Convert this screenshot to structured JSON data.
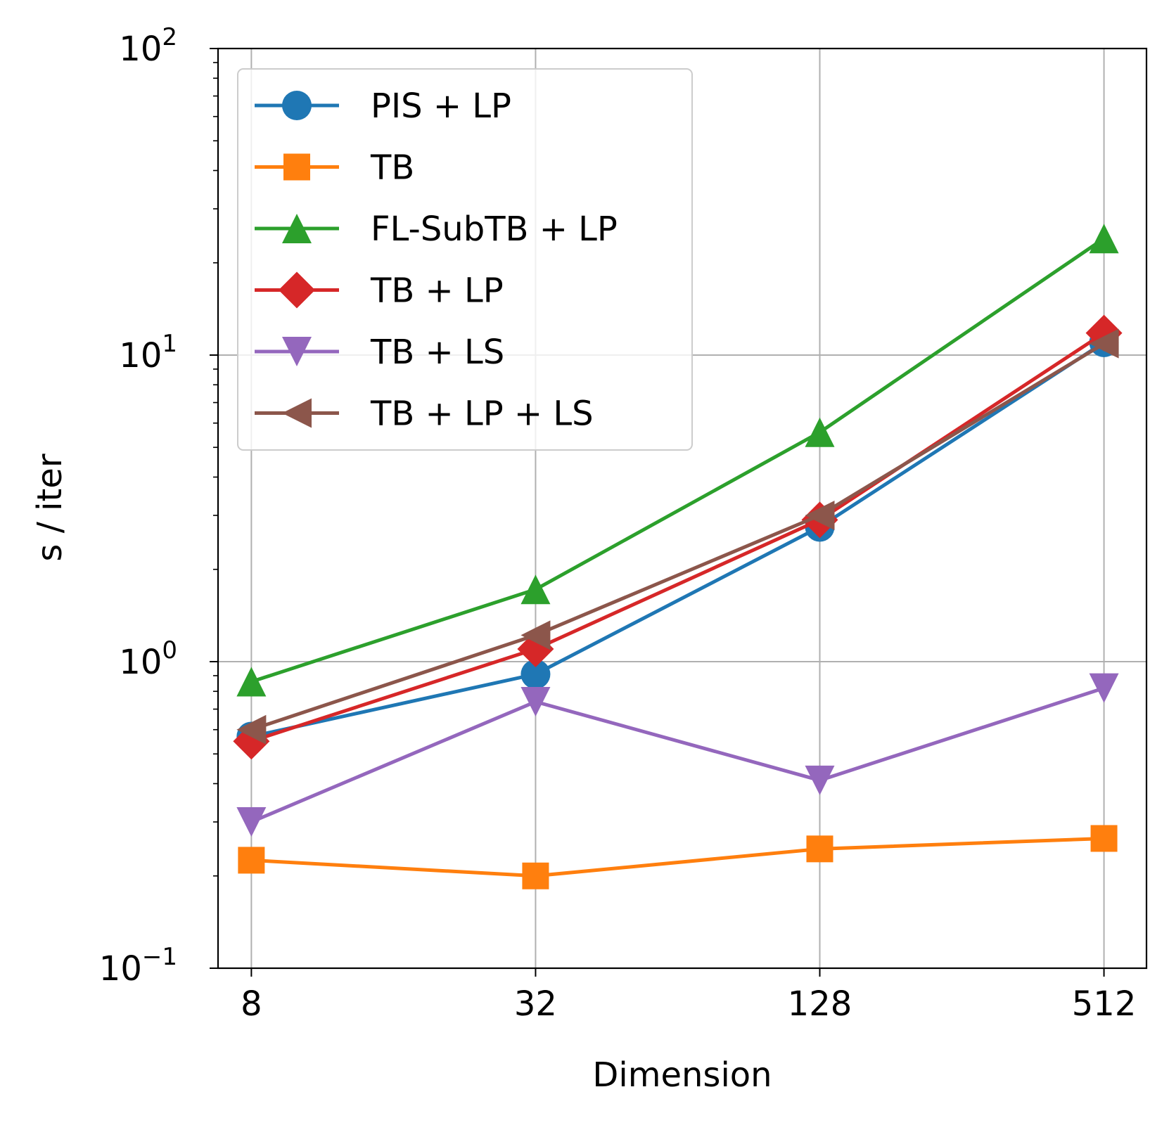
{
  "chart_data": {
    "type": "line",
    "title": "",
    "xlabel": "Dimension",
    "ylabel": "s / iter",
    "x_scale": "log2",
    "y_scale": "log10",
    "x": [
      8,
      32,
      128,
      512
    ],
    "x_tick_labels": [
      "8",
      "32",
      "128",
      "512"
    ],
    "xlim": [
      6.8,
      630
    ],
    "ylim": [
      0.1,
      100
    ],
    "y_ticks": [
      {
        "base": "10",
        "exp": "−1",
        "value": 0.1
      },
      {
        "base": "10",
        "exp": "0",
        "value": 1
      },
      {
        "base": "10",
        "exp": "1",
        "value": 10
      },
      {
        "base": "10",
        "exp": "2",
        "value": 100
      }
    ],
    "grid": true,
    "legend_position": "top-left",
    "series": [
      {
        "name": "PIS + LP",
        "color": "#1f77b4",
        "marker": "circle",
        "values": [
          0.57,
          0.91,
          2.75,
          11.0
        ]
      },
      {
        "name": "TB",
        "color": "#ff7f0e",
        "marker": "square",
        "values": [
          0.225,
          0.2,
          0.245,
          0.265
        ]
      },
      {
        "name": "FL-SubTB + LP",
        "color": "#2ca02c",
        "marker": "triangle-up",
        "values": [
          0.86,
          1.72,
          5.6,
          24.0
        ]
      },
      {
        "name": "TB + LP",
        "color": "#d62728",
        "marker": "diamond",
        "values": [
          0.55,
          1.1,
          2.9,
          11.8
        ]
      },
      {
        "name": "TB + LS",
        "color": "#9467bd",
        "marker": "triangle-down",
        "values": [
          0.3,
          0.74,
          0.41,
          0.82
        ]
      },
      {
        "name": "TB + LP + LS",
        "color": "#8c564b",
        "marker": "triangle-left",
        "values": [
          0.6,
          1.22,
          3.0,
          10.9
        ]
      }
    ]
  }
}
